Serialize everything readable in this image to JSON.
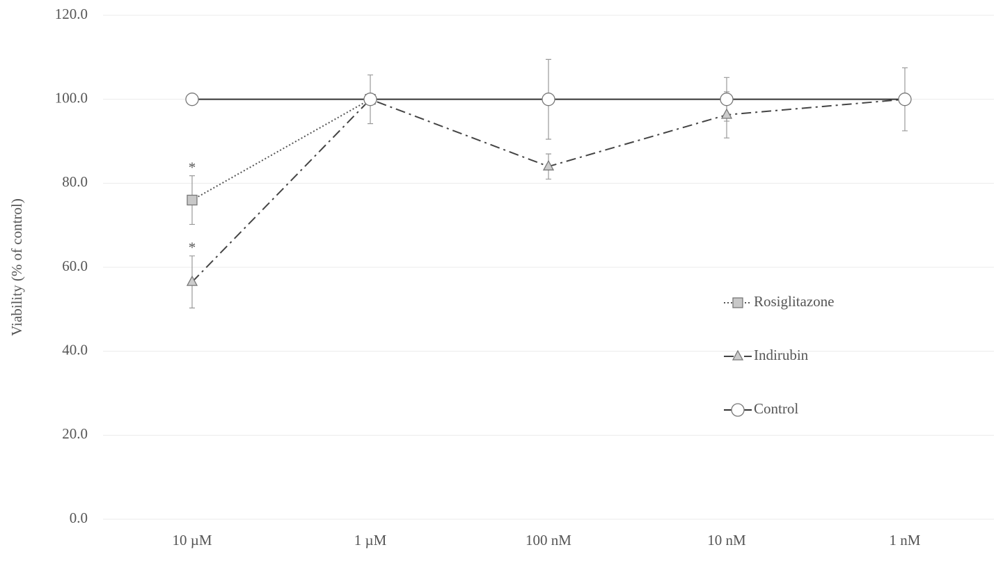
{
  "chart_data": {
    "type": "line",
    "ylabel": "Viability (% of control)",
    "categories": [
      "10 µM",
      "1 µM",
      "100 nM",
      "10 nM",
      "1 nM"
    ],
    "series": [
      {
        "name": "Rosiglitazone",
        "color": "#555555",
        "marker": "square",
        "marker_fill": "#c8c8c8",
        "line_style": "dotted",
        "values": [
          76,
          100,
          null,
          null,
          null
        ],
        "errors": [
          5.8,
          null,
          null,
          null,
          null
        ]
      },
      {
        "name": "Indirubin",
        "color": "#444444",
        "marker": "triangle",
        "marker_fill": "#cccccc",
        "line_style": "dashdot",
        "values": [
          56.5,
          100,
          84,
          96.3,
          100
        ],
        "errors": [
          6.2,
          null,
          3,
          5.5,
          null
        ]
      },
      {
        "name": "Control",
        "color": "#333333",
        "marker": "circle",
        "marker_fill": "#ffffff",
        "line_style": "solid",
        "values": [
          100,
          100,
          100,
          100,
          100
        ],
        "errors": [
          null,
          5.8,
          9.5,
          5.2,
          7.5
        ]
      }
    ],
    "annotations": [
      {
        "text": "*"
      },
      {
        "text": "*"
      }
    ],
    "ylim": [
      0,
      120
    ],
    "yticks": [
      {
        "value": 0,
        "label": "0.0"
      },
      {
        "value": 20,
        "label": "20.0"
      },
      {
        "value": 40,
        "label": "40.0"
      },
      {
        "value": 60,
        "label": "60.0"
      },
      {
        "value": 80,
        "label": "80.0"
      },
      {
        "value": 100,
        "label": "100.0"
      },
      {
        "value": 120,
        "label": "120.0"
      }
    ],
    "grid": true,
    "legend_position": "center-right"
  }
}
